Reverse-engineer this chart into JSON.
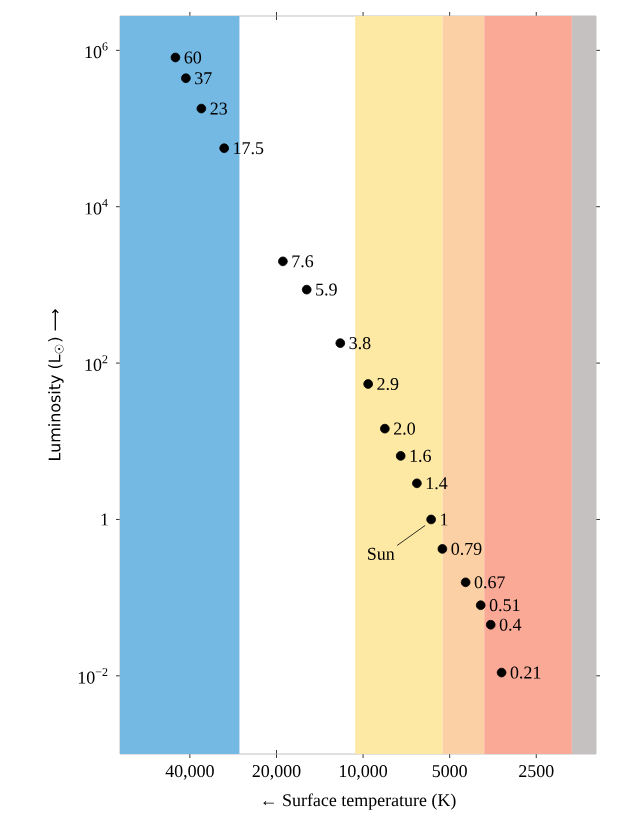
{
  "chart_data": {
    "type": "scatter",
    "xlabel": "← Surface temperature (K)",
    "ylabel": "Luminosity (L$_{☉}$) ⟶",
    "log": "xy",
    "xlim": [
      70000,
      1550
    ],
    "ylim": [
      0.001,
      2750000
    ],
    "xticks": [
      {
        "value": 40000,
        "label": "40,000"
      },
      {
        "value": 20000,
        "label": "20,000"
      },
      {
        "value": 10000,
        "label": "10,000"
      },
      5000,
      2500
    ],
    "yticks": [
      {
        "value": 0.01,
        "label": "10$^{−2}$"
      },
      1,
      {
        "value": 100,
        "label": "10$^{2}$"
      },
      {
        "value": 10000,
        "label": "10$^{4}$"
      },
      {
        "value": 1000000,
        "label": "10$^{6}$"
      }
    ],
    "x": [
      44900,
      41300,
      36500,
      30400,
      19000,
      15700,
      12000,
      9600,
      8400,
      7400,
      6500,
      5800,
      5300,
      4400,
      3900,
      3600,
      3300
    ],
    "values": [
      810000,
      440000,
      180000,
      56000,
      2000,
      870,
      180,
      54,
      14.5,
      6.5,
      2.9,
      1,
      0.42,
      0.157,
      0.08,
      0.045,
      0.011
    ],
    "color": "#000000",
    "marker": "circle",
    "grid": false,
    "bands": [
      {
        "axis": "x",
        "from": 70000,
        "to": 26900,
        "color": "#74b9e4"
      },
      {
        "axis": "x",
        "from": 10650,
        "to": 5290,
        "color": "#fde8a4"
      },
      {
        "axis": "x",
        "from": 5290,
        "to": 3790,
        "color": "#fbd0a4"
      },
      {
        "axis": "x",
        "from": 3790,
        "to": 1880,
        "color": "#f9a996"
      },
      {
        "axis": "x",
        "from": 1880,
        "to": 1550,
        "color": "#c5c1c0"
      }
    ],
    "annotations": [
      {
        "text": "60",
        "x": 44900,
        "y": 810000
      },
      {
        "text": "37",
        "x": 41300,
        "y": 440000
      },
      {
        "text": "23",
        "x": 36500,
        "y": 180000
      },
      {
        "text": "17.5",
        "x": 30400,
        "y": 56000
      },
      {
        "text": "7.6",
        "x": 19000,
        "y": 2000
      },
      {
        "text": "5.9",
        "x": 15700,
        "y": 870
      },
      {
        "text": "3.8",
        "x": 12000,
        "y": 180
      },
      {
        "text": "2.9",
        "x": 9600,
        "y": 54
      },
      {
        "text": "2.0",
        "x": 8400,
        "y": 14.5
      },
      {
        "text": "1.6",
        "x": 7400,
        "y": 6.5
      },
      {
        "text": "1.4",
        "x": 6500,
        "y": 2.9
      },
      {
        "text": "1",
        "x": 5800,
        "y": 1
      },
      {
        "text": "0.79",
        "x": 5300,
        "y": 0.42
      },
      {
        "text": "0.67",
        "x": 4400,
        "y": 0.157
      },
      {
        "text": "0.51",
        "x": 3900,
        "y": 0.08
      },
      {
        "text": "0.4",
        "x": 3600,
        "y": 0.045
      },
      {
        "text": "0.21",
        "x": 3300,
        "y": 0.011
      },
      {
        "text": "Sun",
        "x": 5800,
        "y": 1
      }
    ]
  }
}
